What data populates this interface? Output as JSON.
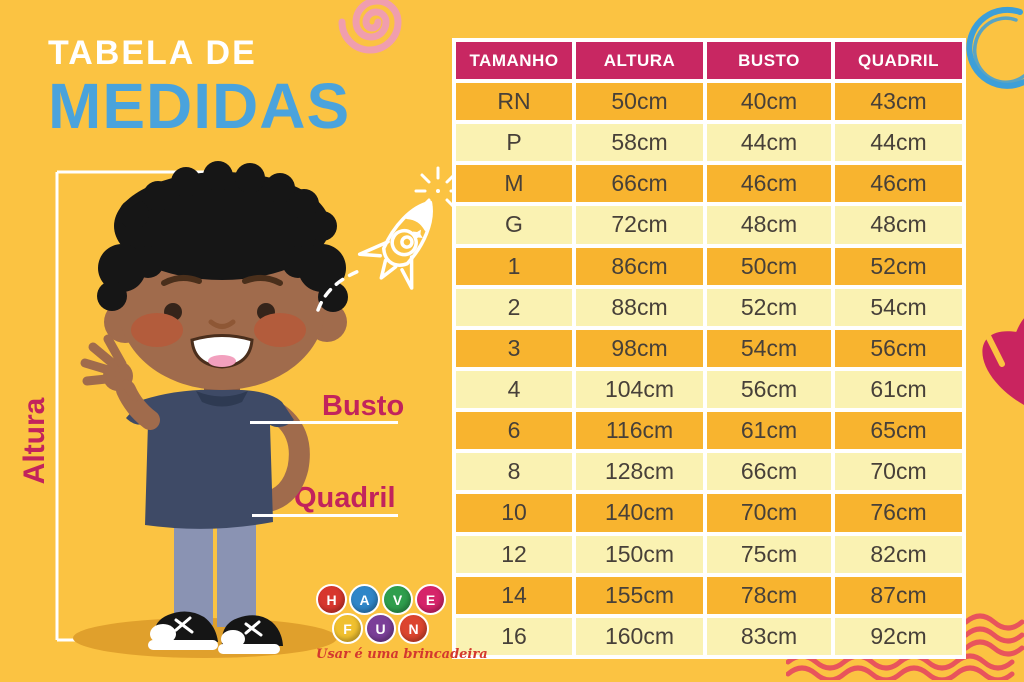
{
  "poster": {
    "title": {
      "line1": "TABELA DE",
      "line2": "MEDIDAS"
    },
    "figure_labels": {
      "height": "Altura",
      "bust": "Busto",
      "hip": "Quadril"
    },
    "logo": {
      "letters": [
        {
          "char": "H",
          "color": "#D7362E"
        },
        {
          "char": "A",
          "color": "#2F86C8"
        },
        {
          "char": "V",
          "color": "#2F9E4D"
        },
        {
          "char": "E",
          "color": "#D6246A"
        },
        {
          "char": "F",
          "color": "#F0C02F"
        },
        {
          "char": "U",
          "color": "#7B3F98"
        },
        {
          "char": "N",
          "color": "#DC452F"
        }
      ],
      "tagline": "Usar é uma brincadeira"
    },
    "colors": {
      "background": "#FBC342",
      "header_bg": "#C82762",
      "row_dark": "#F8B42F",
      "row_light": "#FAF2B2",
      "cell_text": "#474039",
      "title_line2": "#4AA3DC",
      "label_crimson": "#C2235C",
      "wave_red": "#E8545C",
      "spiral_pink": "#F09EAE",
      "doodle_blue": "#3D9FD8"
    }
  },
  "chart_data": {
    "type": "table",
    "title": "Tabela de Medidas",
    "columns": [
      "TAMANHO",
      "ALTURA",
      "BUSTO",
      "QUADRIL"
    ],
    "rows": [
      [
        "RN",
        "50cm",
        "40cm",
        "43cm"
      ],
      [
        "P",
        "58cm",
        "44cm",
        "44cm"
      ],
      [
        "M",
        "66cm",
        "46cm",
        "46cm"
      ],
      [
        "G",
        "72cm",
        "48cm",
        "48cm"
      ],
      [
        "1",
        "86cm",
        "50cm",
        "52cm"
      ],
      [
        "2",
        "88cm",
        "52cm",
        "54cm"
      ],
      [
        "3",
        "98cm",
        "54cm",
        "56cm"
      ],
      [
        "4",
        "104cm",
        "56cm",
        "61cm"
      ],
      [
        "6",
        "116cm",
        "61cm",
        "65cm"
      ],
      [
        "8",
        "128cm",
        "66cm",
        "70cm"
      ],
      [
        "10",
        "140cm",
        "70cm",
        "76cm"
      ],
      [
        "12",
        "150cm",
        "75cm",
        "82cm"
      ],
      [
        "14",
        "155cm",
        "78cm",
        "87cm"
      ],
      [
        "16",
        "160cm",
        "83cm",
        "92cm"
      ]
    ]
  }
}
